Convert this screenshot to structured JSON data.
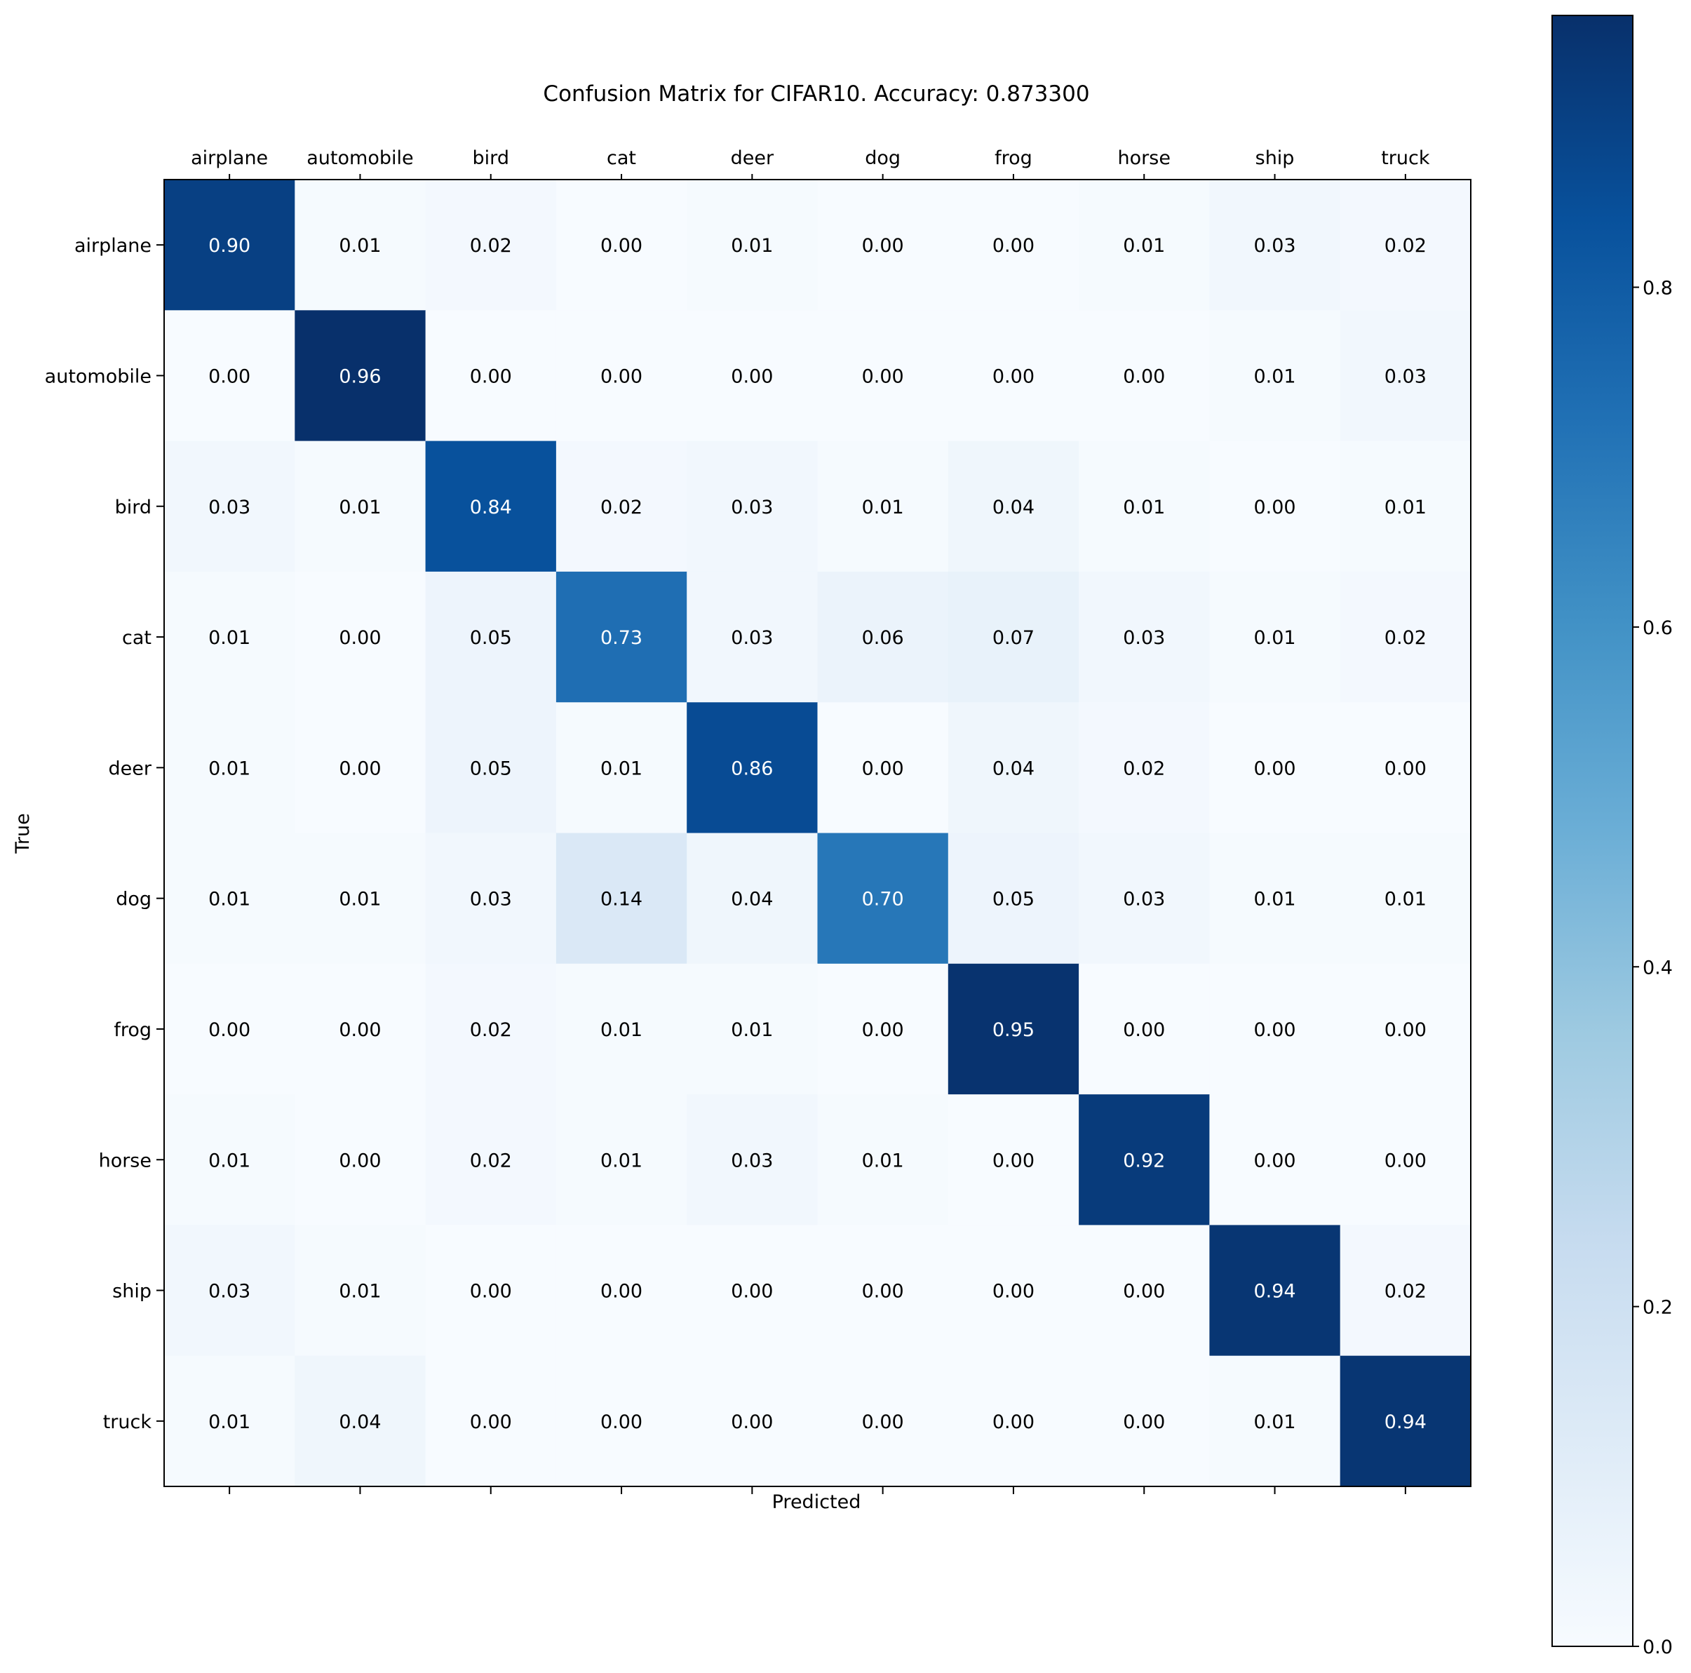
{
  "chart_data": {
    "type": "heatmap",
    "title": "Confusion Matrix for CIFAR10. Accuracy: 0.873300",
    "xlabel": "Predicted",
    "ylabel": "True",
    "classes": [
      "airplane",
      "automobile",
      "bird",
      "cat",
      "deer",
      "dog",
      "frog",
      "horse",
      "ship",
      "truck"
    ],
    "matrix": [
      [
        "0.90",
        "0.01",
        "0.02",
        "0.00",
        "0.01",
        "0.00",
        "0.00",
        "0.01",
        "0.03",
        "0.02"
      ],
      [
        "0.00",
        "0.96",
        "0.00",
        "0.00",
        "0.00",
        "0.00",
        "0.00",
        "0.00",
        "0.01",
        "0.03"
      ],
      [
        "0.03",
        "0.01",
        "0.84",
        "0.02",
        "0.03",
        "0.01",
        "0.04",
        "0.01",
        "0.00",
        "0.01"
      ],
      [
        "0.01",
        "0.00",
        "0.05",
        "0.73",
        "0.03",
        "0.06",
        "0.07",
        "0.03",
        "0.01",
        "0.02"
      ],
      [
        "0.01",
        "0.00",
        "0.05",
        "0.01",
        "0.86",
        "0.00",
        "0.04",
        "0.02",
        "0.00",
        "0.00"
      ],
      [
        "0.01",
        "0.01",
        "0.03",
        "0.14",
        "0.04",
        "0.70",
        "0.05",
        "0.03",
        "0.01",
        "0.01"
      ],
      [
        "0.00",
        "0.00",
        "0.02",
        "0.01",
        "0.01",
        "0.00",
        "0.95",
        "0.00",
        "0.00",
        "0.00"
      ],
      [
        "0.01",
        "0.00",
        "0.02",
        "0.01",
        "0.03",
        "0.01",
        "0.00",
        "0.92",
        "0.00",
        "0.00"
      ],
      [
        "0.03",
        "0.01",
        "0.00",
        "0.00",
        "0.00",
        "0.00",
        "0.00",
        "0.00",
        "0.94",
        "0.02"
      ],
      [
        "0.01",
        "0.04",
        "0.00",
        "0.00",
        "0.00",
        "0.00",
        "0.00",
        "0.00",
        "0.01",
        "0.94"
      ]
    ],
    "colormap": "Blues",
    "color_range": [
      0,
      0.96
    ],
    "colorbar": {
      "ticks": [
        0.0,
        0.2,
        0.4,
        0.6,
        0.8
      ],
      "tick_labels": [
        "0.0",
        "0.2",
        "0.4",
        "0.6",
        "0.8"
      ]
    }
  }
}
